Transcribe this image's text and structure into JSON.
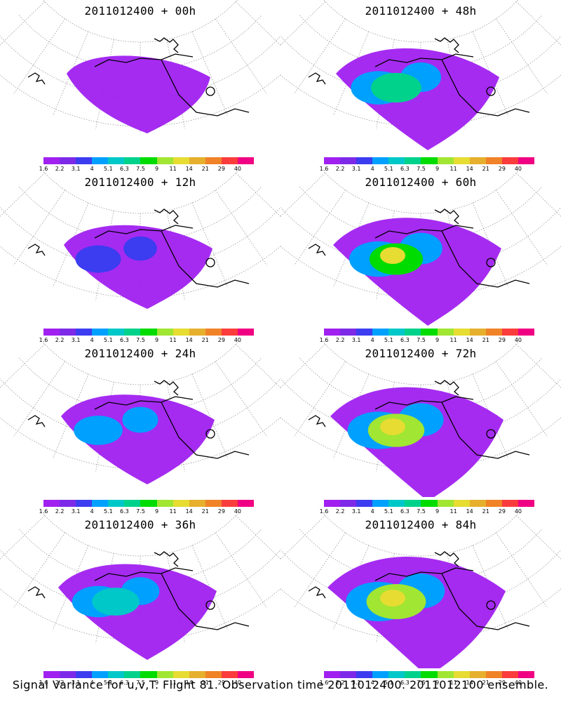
{
  "figure_caption": "Signal Variance for u,v,T. Flight 81. Observation time 2011012400. 2011012100 ensemble.",
  "colorbar": {
    "colors": [
      "#a020f0",
      "#7d2ae8",
      "#3c3cf0",
      "#00a0ff",
      "#00c8c8",
      "#00d28c",
      "#00dc00",
      "#a0e632",
      "#e6dc32",
      "#e6af2d",
      "#f08228",
      "#fa3c3c",
      "#f00082"
    ],
    "tick_labels": [
      "1.6",
      "2.2",
      "3.1",
      "4",
      "5.1",
      "6.3",
      "7.5",
      "9",
      "11",
      "14",
      "21",
      "29",
      "40"
    ]
  },
  "panels": [
    {
      "title": "2011012400 + 00h",
      "intensity": 0
    },
    {
      "title": "2011012400 + 48h",
      "intensity": 4
    },
    {
      "title": "2011012400 + 12h",
      "intensity": 1
    },
    {
      "title": "2011012400 + 60h",
      "intensity": 5
    },
    {
      "title": "2011012400 + 24h",
      "intensity": 2
    },
    {
      "title": "2011012400 + 72h",
      "intensity": 6
    },
    {
      "title": "2011012400 + 36h",
      "intensity": 3
    },
    {
      "title": "2011012400 + 84h",
      "intensity": 7
    }
  ]
}
